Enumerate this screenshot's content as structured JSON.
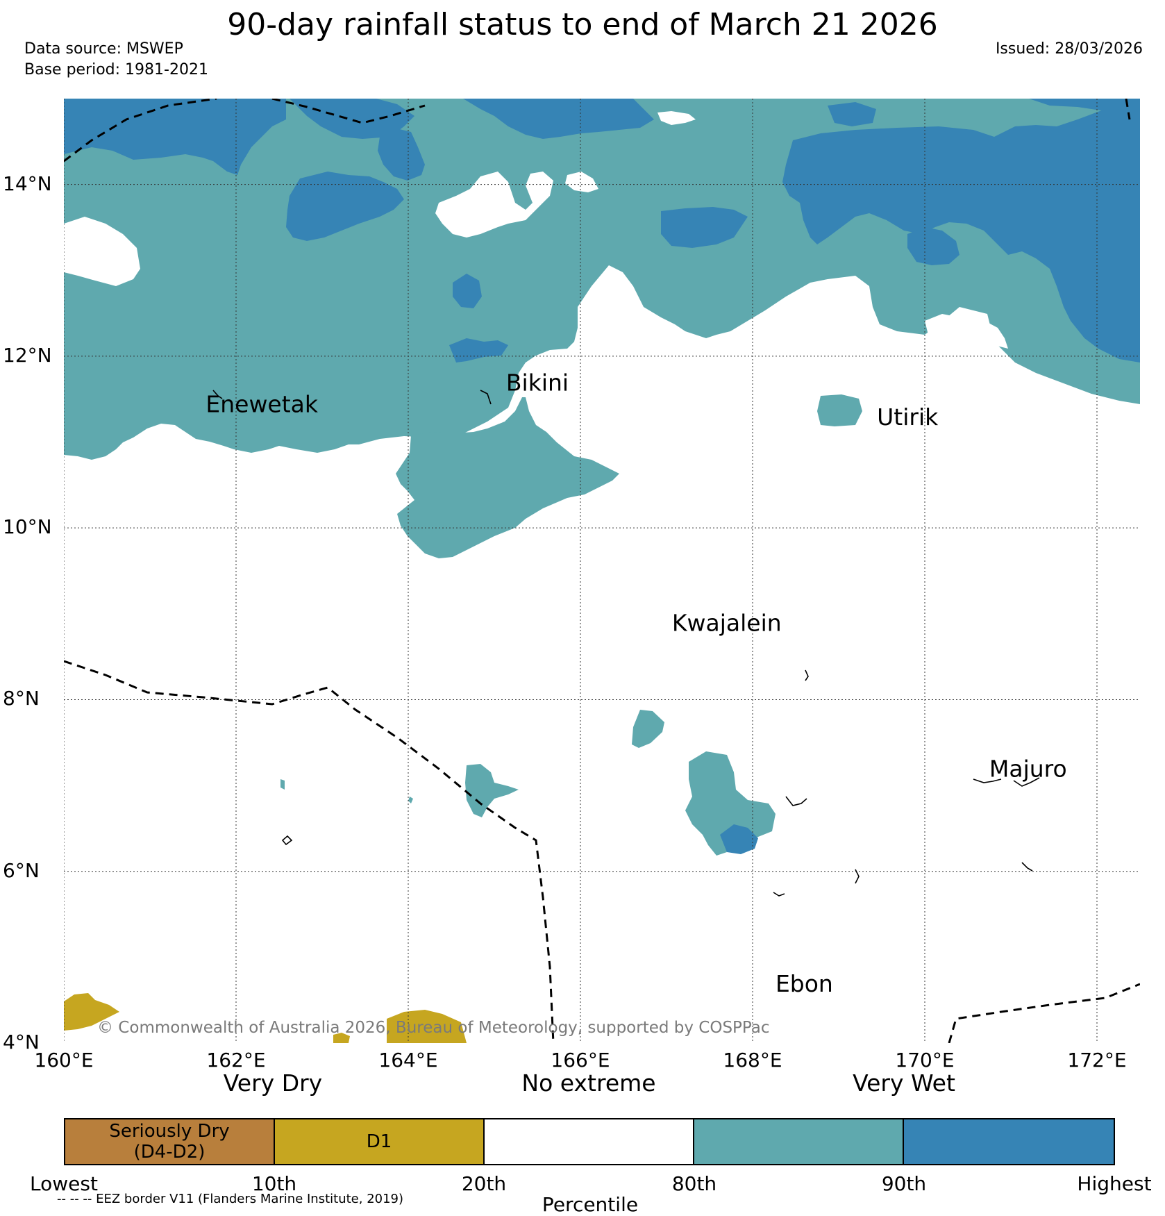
{
  "title": "90-day rainfall status to end of March 21 2026",
  "data_source": "Data source: MSWEP",
  "base_period": "Base period: 1981-2021",
  "issued": "Issued: 28/03/2026",
  "copyright": "© Commonwealth of Australia 2026, Bureau of Meteorology, supported by COSPPac",
  "map": {
    "lon_range": [
      160,
      172.5
    ],
    "lat_range": [
      4,
      15
    ],
    "lon_ticks": [
      "160°E",
      "162°E",
      "164°E",
      "166°E",
      "168°E",
      "170°E",
      "172°E"
    ],
    "lat_ticks": [
      "14°N",
      "12°N",
      "10°N",
      "8°N",
      "6°N",
      "4°N"
    ],
    "grid": true,
    "places": [
      {
        "name": "Enewetak",
        "lon": 162.3,
        "lat": 11.35
      },
      {
        "name": "Bikini",
        "lon": 165.5,
        "lat": 11.6
      },
      {
        "name": "Utirik",
        "lon": 169.8,
        "lat": 11.2
      },
      {
        "name": "Kwajalein",
        "lon": 167.7,
        "lat": 8.8
      },
      {
        "name": "Majuro",
        "lon": 171.2,
        "lat": 7.1
      },
      {
        "name": "Ebon",
        "lon": 168.6,
        "lat": 4.6
      }
    ]
  },
  "categories": {
    "very_dry": "Very Dry",
    "no_extreme": "No extreme",
    "very_wet": "Very Wet"
  },
  "legend": {
    "segments": [
      {
        "label": "Seriously Dry\n(D4-D2)",
        "color": "#b87f3c"
      },
      {
        "label": "D1",
        "color": "#c6a620"
      },
      {
        "label": "",
        "color": "#ffffff"
      },
      {
        "label": "",
        "color": "#5fa9ae"
      },
      {
        "label": "",
        "color": "#3684b5"
      }
    ],
    "percentiles": [
      "Lowest",
      "10th",
      "20th",
      "80th",
      "90th",
      "Highest"
    ],
    "axis_title": "Percentile"
  },
  "footnote": "-- -- -- EEZ border V11 (Flanders Marine Institute, 2019)",
  "colors": {
    "very_wet": "#5fa9ae",
    "very_much_wet": "#3684b5",
    "d1": "#c6a620",
    "seriously_dry": "#b87f3c"
  }
}
